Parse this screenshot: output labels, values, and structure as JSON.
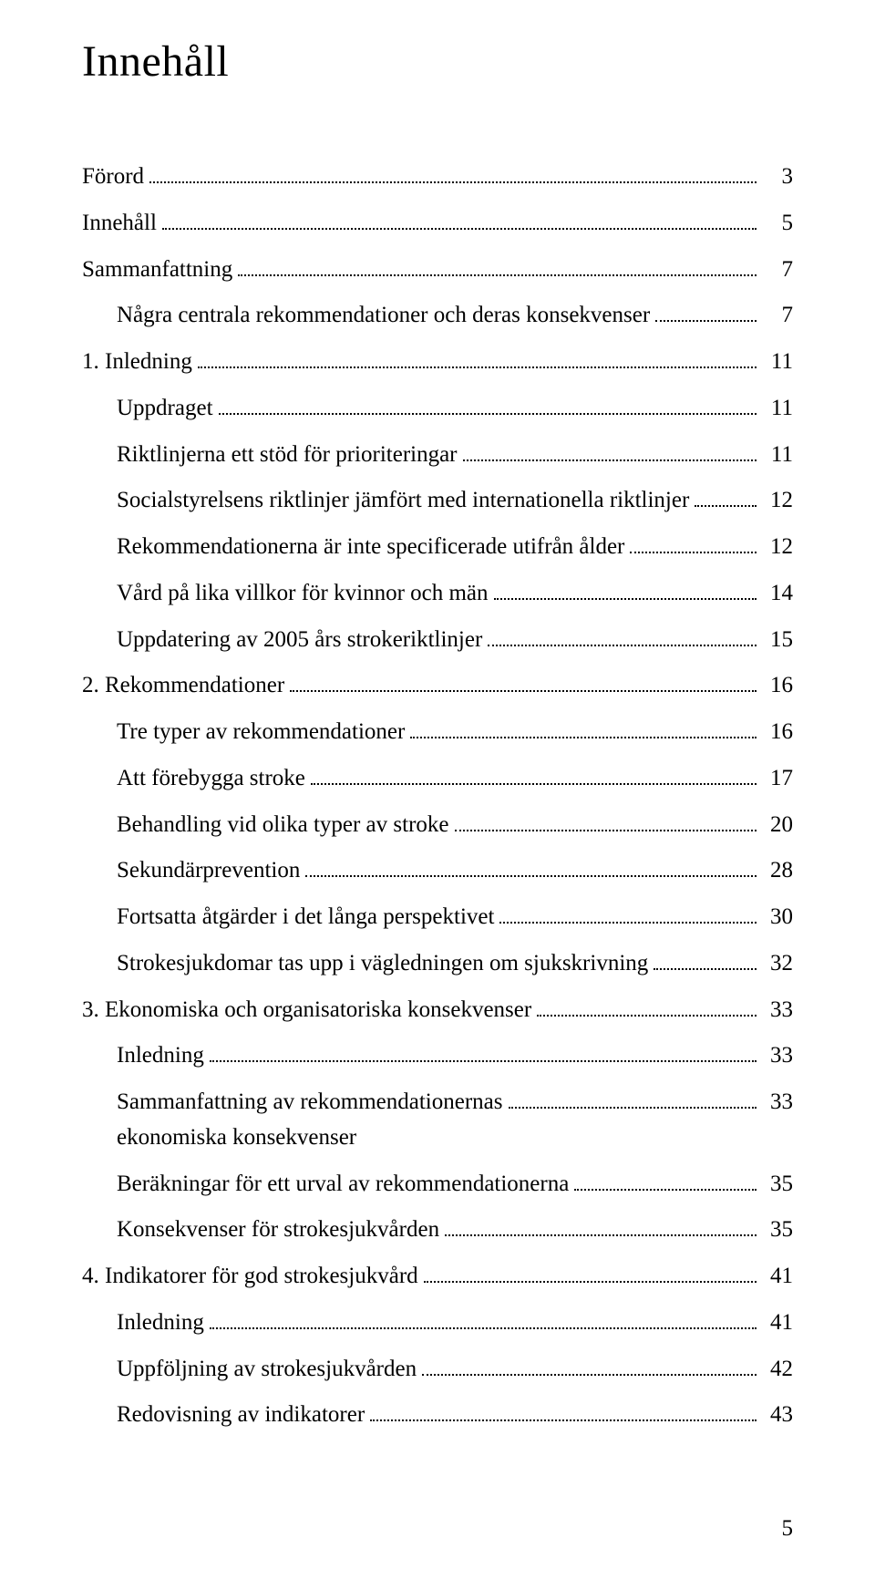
{
  "document": {
    "title": "Innehåll",
    "page_number": "5",
    "text_color": "#000000",
    "background_color": "#ffffff",
    "base_font_size_pt": 19,
    "title_font_size_pt": 36
  },
  "toc": [
    {
      "label": "Förord",
      "page": "3",
      "indent": 0
    },
    {
      "label": "Innehåll",
      "page": "5",
      "indent": 0
    },
    {
      "label": "Sammanfattning",
      "page": "7",
      "indent": 0
    },
    {
      "label": "Några centrala rekommendationer och deras konsekvenser",
      "page": "7",
      "indent": 1
    },
    {
      "label": "1. Inledning",
      "page": "11",
      "indent": 0
    },
    {
      "label": "Uppdraget",
      "page": "11",
      "indent": 1
    },
    {
      "label": "Riktlinjerna ett stöd för prioriteringar",
      "page": "11",
      "indent": 1
    },
    {
      "label": "Socialstyrelsens riktlinjer jämfört med internationella riktlinjer",
      "page": "12",
      "indent": 1
    },
    {
      "label": "Rekommendationerna är inte specificerade utifrån ålder",
      "page": "12",
      "indent": 1
    },
    {
      "label": "Vård på lika villkor för kvinnor och män",
      "page": "14",
      "indent": 1
    },
    {
      "label": "Uppdatering av 2005 års strokeriktlinjer",
      "page": "15",
      "indent": 1
    },
    {
      "label": "2. Rekommendationer",
      "page": "16",
      "indent": 0
    },
    {
      "label": "Tre typer av rekommendationer",
      "page": "16",
      "indent": 1
    },
    {
      "label": "Att förebygga stroke",
      "page": "17",
      "indent": 1
    },
    {
      "label": "Behandling vid olika typer av stroke",
      "page": "20",
      "indent": 1
    },
    {
      "label": "Sekundärprevention",
      "page": "28",
      "indent": 1
    },
    {
      "label": "Fortsatta åtgärder i det långa perspektivet",
      "page": "30",
      "indent": 1
    },
    {
      "label": "Strokesjukdomar tas upp i vägledningen om sjukskrivning",
      "page": "32",
      "indent": 1
    },
    {
      "label": "3. Ekonomiska och organisatoriska konsekvenser",
      "page": "33",
      "indent": 0
    },
    {
      "label": "Inledning",
      "page": "33",
      "indent": 1
    },
    {
      "label": "Sammanfattning av rekommendationernas\nekonomiska konsekvenser",
      "page": "33",
      "indent": 1,
      "multiline": true
    },
    {
      "label": "Beräkningar för ett urval av rekommendationerna",
      "page": "35",
      "indent": 1
    },
    {
      "label": "Konsekvenser för strokesjukvården",
      "page": "35",
      "indent": 1
    },
    {
      "label": "4. Indikatorer för god strokesjukvård",
      "page": "41",
      "indent": 0
    },
    {
      "label": "Inledning",
      "page": "41",
      "indent": 1
    },
    {
      "label": "Uppföljning av strokesjukvården",
      "page": "42",
      "indent": 1
    },
    {
      "label": "Redovisning av indikatorer",
      "page": "43",
      "indent": 1
    }
  ]
}
